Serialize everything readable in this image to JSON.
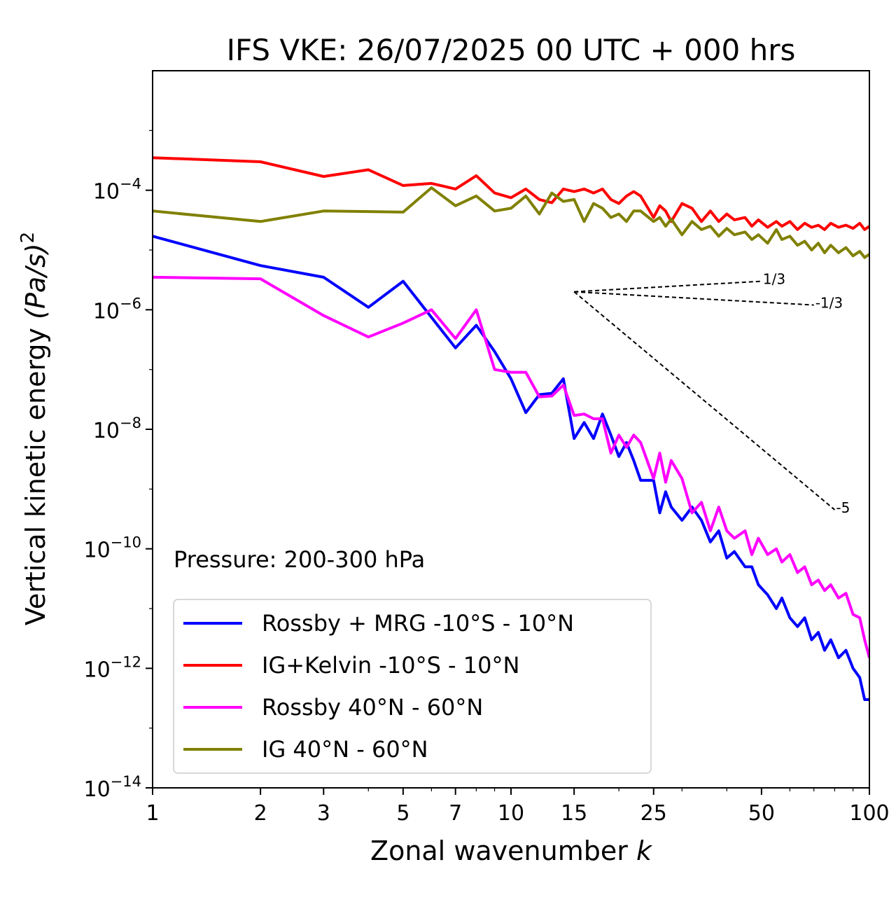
{
  "chart_data": {
    "type": "line",
    "title": "IFS VKE: 26/07/2025 00 UTC + 000 hrs",
    "xlabel": "Zonal wavenumber",
    "xlabel_var": "k",
    "ylabel": "Vertical kinetic energy",
    "ylabel_unit": "(Pa/s)",
    "ylabel_exp": "2",
    "xscale": "log",
    "yscale": "log",
    "xlim": [
      1,
      100
    ],
    "ylim": [
      1e-14,
      0.01
    ],
    "x_ticks": [
      1,
      2,
      3,
      5,
      7,
      10,
      15,
      25,
      50,
      100
    ],
    "y_ticks": [
      {
        "value": 0.0001,
        "base": "10",
        "exp": "−4"
      },
      {
        "value": 1e-06,
        "base": "10",
        "exp": "−6"
      },
      {
        "value": 1e-08,
        "base": "10",
        "exp": "−8"
      },
      {
        "value": 1e-10,
        "base": "10",
        "exp": "−10"
      },
      {
        "value": 1e-12,
        "base": "10",
        "exp": "−12"
      },
      {
        "value": 1e-14,
        "base": "10",
        "exp": "−14"
      }
    ],
    "annotation": "Pressure: 200-300 hPa",
    "legend_position": "lower-left",
    "series": [
      {
        "name": "Rossby + MRG -10°S - 10°N",
        "color": "#0000ff",
        "points": [
          [
            1,
            1.7e-05
          ],
          [
            2,
            5.5e-06
          ],
          [
            3,
            3.5e-06
          ],
          [
            4,
            1.1e-06
          ],
          [
            5,
            3e-06
          ],
          [
            7,
            2.3e-07
          ],
          [
            8,
            5.5e-07
          ],
          [
            9,
            2e-07
          ],
          [
            10,
            7e-08
          ],
          [
            11,
            1.9e-08
          ],
          [
            12,
            3.8e-08
          ],
          [
            13,
            4e-08
          ],
          [
            14,
            7e-08
          ],
          [
            15,
            7e-09
          ],
          [
            16,
            1.3e-08
          ],
          [
            17,
            7e-09
          ],
          [
            18,
            1.8e-08
          ],
          [
            19,
            8e-09
          ],
          [
            20,
            3.5e-09
          ],
          [
            21,
            6e-09
          ],
          [
            22,
            3e-09
          ],
          [
            23,
            1.4e-09
          ],
          [
            25,
            1.4e-09
          ],
          [
            26,
            4e-10
          ],
          [
            27,
            9e-10
          ],
          [
            28,
            5e-10
          ],
          [
            30,
            3e-10
          ],
          [
            32,
            5e-10
          ],
          [
            34,
            3e-10
          ],
          [
            36,
            1.3e-10
          ],
          [
            38,
            2e-10
          ],
          [
            40,
            7e-11
          ],
          [
            42,
            9e-11
          ],
          [
            45,
            5e-11
          ],
          [
            47,
            5e-11
          ],
          [
            49,
            2.5e-11
          ],
          [
            52,
            1.7e-11
          ],
          [
            55,
            1e-11
          ],
          [
            57,
            1.5e-11
          ],
          [
            60,
            7e-12
          ],
          [
            63,
            5e-12
          ],
          [
            66,
            7e-12
          ],
          [
            69,
            3e-12
          ],
          [
            72,
            4e-12
          ],
          [
            75,
            2e-12
          ],
          [
            78,
            3e-12
          ],
          [
            82,
            1.5e-12
          ],
          [
            86,
            2e-12
          ],
          [
            90,
            1e-12
          ],
          [
            94,
            7e-13
          ],
          [
            97,
            3e-13
          ],
          [
            100,
            3e-13
          ]
        ]
      },
      {
        "name": "IG+Kelvin -10°S - 10°N",
        "color": "#ff0000",
        "points": [
          [
            1,
            0.00035
          ],
          [
            2,
            0.0003
          ],
          [
            3,
            0.00017
          ],
          [
            4,
            0.00022
          ],
          [
            5,
            0.00012
          ],
          [
            6,
            0.00013
          ],
          [
            7,
            0.000105
          ],
          [
            8,
            0.000175
          ],
          [
            9,
            9e-05
          ],
          [
            10,
            7.5e-05
          ],
          [
            11,
            0.000105
          ],
          [
            12,
            7e-05
          ],
          [
            13,
            6.2e-05
          ],
          [
            14,
            0.000105
          ],
          [
            15,
            9.5e-05
          ],
          [
            16,
            0.000105
          ],
          [
            17,
            9e-05
          ],
          [
            18,
            0.000105
          ],
          [
            19,
            7e-05
          ],
          [
            20,
            6e-05
          ],
          [
            21,
            8e-05
          ],
          [
            22,
            9.5e-05
          ],
          [
            23,
            8e-05
          ],
          [
            25,
            3.5e-05
          ],
          [
            26,
            5.5e-05
          ],
          [
            27,
            4.5e-05
          ],
          [
            28,
            3e-05
          ],
          [
            30,
            6e-05
          ],
          [
            32,
            5e-05
          ],
          [
            34,
            3e-05
          ],
          [
            36,
            4.5e-05
          ],
          [
            38,
            3e-05
          ],
          [
            40,
            4e-05
          ],
          [
            42,
            3.2e-05
          ],
          [
            45,
            3.5e-05
          ],
          [
            47,
            2.5e-05
          ],
          [
            49,
            3.2e-05
          ],
          [
            52,
            2.4e-05
          ],
          [
            55,
            3e-05
          ],
          [
            57,
            2.5e-05
          ],
          [
            60,
            3e-05
          ],
          [
            63,
            2.2e-05
          ],
          [
            66,
            2.8e-05
          ],
          [
            69,
            2.4e-05
          ],
          [
            72,
            2.6e-05
          ],
          [
            75,
            2.2e-05
          ],
          [
            78,
            2.8e-05
          ],
          [
            82,
            2.4e-05
          ],
          [
            86,
            2.6e-05
          ],
          [
            90,
            2.3e-05
          ],
          [
            94,
            2.8e-05
          ],
          [
            97,
            2.2e-05
          ],
          [
            100,
            2.5e-05
          ]
        ]
      },
      {
        "name": "Rossby 40°N - 60°N",
        "color": "#ff00ff",
        "points": [
          [
            1,
            3.5e-06
          ],
          [
            2,
            3.3e-06
          ],
          [
            3,
            8e-07
          ],
          [
            4,
            3.5e-07
          ],
          [
            5,
            6e-07
          ],
          [
            6,
            1e-06
          ],
          [
            7,
            3.3e-07
          ],
          [
            8,
            1e-06
          ],
          [
            9,
            1e-07
          ],
          [
            10,
            9e-08
          ],
          [
            11,
            9e-08
          ],
          [
            12,
            3.5e-08
          ],
          [
            13,
            3.6e-08
          ],
          [
            14,
            5.5e-08
          ],
          [
            15,
            1.7e-08
          ],
          [
            16,
            1.8e-08
          ],
          [
            17,
            1.5e-08
          ],
          [
            18,
            1.5e-08
          ],
          [
            19,
            4e-09
          ],
          [
            20,
            8e-09
          ],
          [
            21,
            5e-09
          ],
          [
            22,
            8e-09
          ],
          [
            23,
            6e-09
          ],
          [
            25,
            1.5e-09
          ],
          [
            26,
            4e-09
          ],
          [
            27,
            1.3e-09
          ],
          [
            28,
            3e-09
          ],
          [
            30,
            1.5e-09
          ],
          [
            32,
            4e-10
          ],
          [
            34,
            6e-10
          ],
          [
            36,
            2e-10
          ],
          [
            38,
            5e-10
          ],
          [
            40,
            2e-10
          ],
          [
            42,
            1.5e-10
          ],
          [
            45,
            2e-10
          ],
          [
            47,
            8e-11
          ],
          [
            49,
            1.5e-10
          ],
          [
            52,
            8e-11
          ],
          [
            55,
            1e-10
          ],
          [
            57,
            6e-11
          ],
          [
            60,
            8e-11
          ],
          [
            63,
            4e-11
          ],
          [
            66,
            5e-11
          ],
          [
            69,
            2.5e-11
          ],
          [
            72,
            3e-11
          ],
          [
            75,
            2e-11
          ],
          [
            78,
            2.5e-11
          ],
          [
            82,
            1.5e-11
          ],
          [
            86,
            1.8e-11
          ],
          [
            90,
            8e-12
          ],
          [
            94,
            7e-12
          ],
          [
            97,
            3e-12
          ],
          [
            100,
            1.5e-12
          ]
        ]
      },
      {
        "name": "IG 40°N - 60°N",
        "color": "#808000",
        "points": [
          [
            1,
            4.5e-05
          ],
          [
            2,
            3e-05
          ],
          [
            3,
            4.5e-05
          ],
          [
            4,
            4.4e-05
          ],
          [
            5,
            4.3e-05
          ],
          [
            6,
            0.00011
          ],
          [
            7,
            5.5e-05
          ],
          [
            8,
            8e-05
          ],
          [
            9,
            4.5e-05
          ],
          [
            10,
            5e-05
          ],
          [
            11,
            8e-05
          ],
          [
            12,
            4e-05
          ],
          [
            13,
            9e-05
          ],
          [
            14,
            6.5e-05
          ],
          [
            15,
            7e-05
          ],
          [
            16,
            3e-05
          ],
          [
            17,
            6e-05
          ],
          [
            18,
            5e-05
          ],
          [
            19,
            3.5e-05
          ],
          [
            20,
            4e-05
          ],
          [
            21,
            3e-05
          ],
          [
            22,
            4.5e-05
          ],
          [
            23,
            4.5e-05
          ],
          [
            25,
            3e-05
          ],
          [
            26,
            3.5e-05
          ],
          [
            27,
            2.5e-05
          ],
          [
            28,
            3.3e-05
          ],
          [
            30,
            1.8e-05
          ],
          [
            32,
            3e-05
          ],
          [
            34,
            2.2e-05
          ],
          [
            36,
            2.5e-05
          ],
          [
            38,
            1.7e-05
          ],
          [
            40,
            2.3e-05
          ],
          [
            42,
            1.8e-05
          ],
          [
            45,
            2e-05
          ],
          [
            47,
            1.5e-05
          ],
          [
            49,
            1.8e-05
          ],
          [
            52,
            1.3e-05
          ],
          [
            55,
            2.2e-05
          ],
          [
            57,
            1.5e-05
          ],
          [
            60,
            1.7e-05
          ],
          [
            63,
            1.2e-05
          ],
          [
            66,
            1.4e-05
          ],
          [
            69,
            1e-05
          ],
          [
            72,
            1.3e-05
          ],
          [
            75,
            9e-06
          ],
          [
            78,
            1.2e-05
          ],
          [
            82,
            9e-06
          ],
          [
            86,
            1.1e-05
          ],
          [
            90,
            8e-06
          ],
          [
            94,
            9.5e-06
          ],
          [
            97,
            7.5e-06
          ],
          [
            100,
            8.5e-06
          ]
        ]
      }
    ],
    "reference_lines": [
      {
        "label": "1/3",
        "from": [
          15,
          2e-06
        ],
        "to": [
          50,
          3e-06
        ]
      },
      {
        "label": "-1/3",
        "from": [
          15,
          2e-06
        ],
        "to": [
          70,
          1.2e-06
        ]
      },
      {
        "label": "-5",
        "from": [
          15,
          2e-06
        ],
        "to": [
          80,
          4.5e-10
        ]
      }
    ]
  }
}
